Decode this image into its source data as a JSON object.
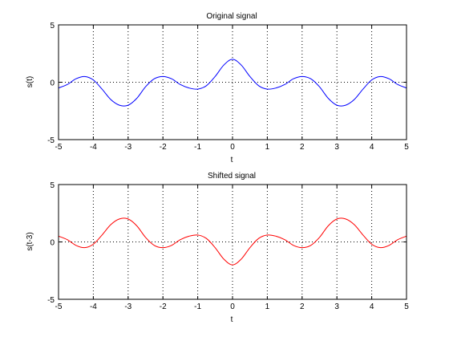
{
  "chart_data": [
    {
      "type": "line",
      "title": "Original signal",
      "xlabel": "t",
      "ylabel": "s(t)",
      "xlim": [
        -5,
        5
      ],
      "ylim": [
        -5,
        5
      ],
      "xticks": [
        -5,
        -4,
        -3,
        -2,
        -1,
        0,
        1,
        2,
        3,
        4,
        5
      ],
      "xtick_labels": [
        "-5",
        "-4",
        "-3",
        "-2",
        "-1",
        "0",
        "1",
        "2",
        "3",
        "4",
        "5"
      ],
      "yticks": [
        -5,
        0,
        5
      ],
      "ytick_labels": [
        "-5",
        "0",
        "5"
      ],
      "grid": true,
      "series": [
        {
          "color": "#0000ff",
          "x": [
            -5,
            -4.75,
            -4.5,
            -4.25,
            -4,
            -3.75,
            -3.5,
            -3.25,
            -3,
            -2.75,
            -2.5,
            -2.25,
            -2,
            -1.75,
            -1.5,
            -1.25,
            -1,
            -0.75,
            -0.5,
            -0.25,
            0,
            0.25,
            0.5,
            0.75,
            1,
            1.25,
            1.5,
            1.75,
            2,
            2.25,
            2.5,
            2.75,
            3,
            3.25,
            3.5,
            3.75,
            4,
            4.25,
            4.5,
            4.75,
            5
          ],
          "y": [
            -0.5,
            -0.2,
            0.3,
            0.5,
            0.2,
            -0.6,
            -1.5,
            -2.0,
            -2.0,
            -1.4,
            -0.4,
            0.3,
            0.5,
            0.3,
            -0.2,
            -0.5,
            -0.6,
            -0.3,
            0.5,
            1.5,
            2.0,
            1.5,
            0.5,
            -0.3,
            -0.6,
            -0.5,
            -0.2,
            0.3,
            0.5,
            0.3,
            -0.4,
            -1.4,
            -2.0,
            -2.0,
            -1.5,
            -0.6,
            0.2,
            0.5,
            0.3,
            -0.2,
            -0.5
          ]
        }
      ]
    },
    {
      "type": "line",
      "title": "Shifted signal",
      "xlabel": "t",
      "ylabel": "s(t-3)",
      "xlim": [
        -5,
        5
      ],
      "ylim": [
        -5,
        5
      ],
      "xticks": [
        -5,
        -4,
        -3,
        -2,
        -1,
        0,
        1,
        2,
        3,
        4,
        5
      ],
      "xtick_labels": [
        "-5",
        "-4",
        "-3",
        "-2",
        "-1",
        "0",
        "1",
        "2",
        "3",
        "4",
        "5"
      ],
      "yticks": [
        -5,
        0,
        5
      ],
      "ytick_labels": [
        "-5",
        "0",
        "5"
      ],
      "grid": true,
      "series": [
        {
          "color": "#ff0000",
          "x": [
            -5,
            -4.75,
            -4.5,
            -4.25,
            -4,
            -3.75,
            -3.5,
            -3.25,
            -3,
            -2.75,
            -2.5,
            -2.25,
            -2,
            -1.75,
            -1.5,
            -1.25,
            -1,
            -0.75,
            -0.5,
            -0.25,
            0,
            0.25,
            0.5,
            0.75,
            1,
            1.25,
            1.5,
            1.75,
            2,
            2.25,
            2.5,
            2.75,
            3,
            3.25,
            3.5,
            3.75,
            4,
            4.25,
            4.5,
            4.75,
            5
          ],
          "y": [
            0.5,
            0.2,
            -0.3,
            -0.5,
            -0.2,
            0.6,
            1.5,
            2.0,
            2.0,
            1.4,
            0.4,
            -0.3,
            -0.5,
            -0.3,
            0.2,
            0.5,
            0.6,
            0.3,
            -0.5,
            -1.5,
            -2.0,
            -1.5,
            -0.5,
            0.3,
            0.6,
            0.5,
            0.2,
            -0.3,
            -0.5,
            -0.3,
            0.4,
            1.4,
            2.0,
            2.0,
            1.5,
            0.6,
            -0.2,
            -0.5,
            -0.3,
            0.2,
            0.5
          ]
        }
      ]
    }
  ]
}
